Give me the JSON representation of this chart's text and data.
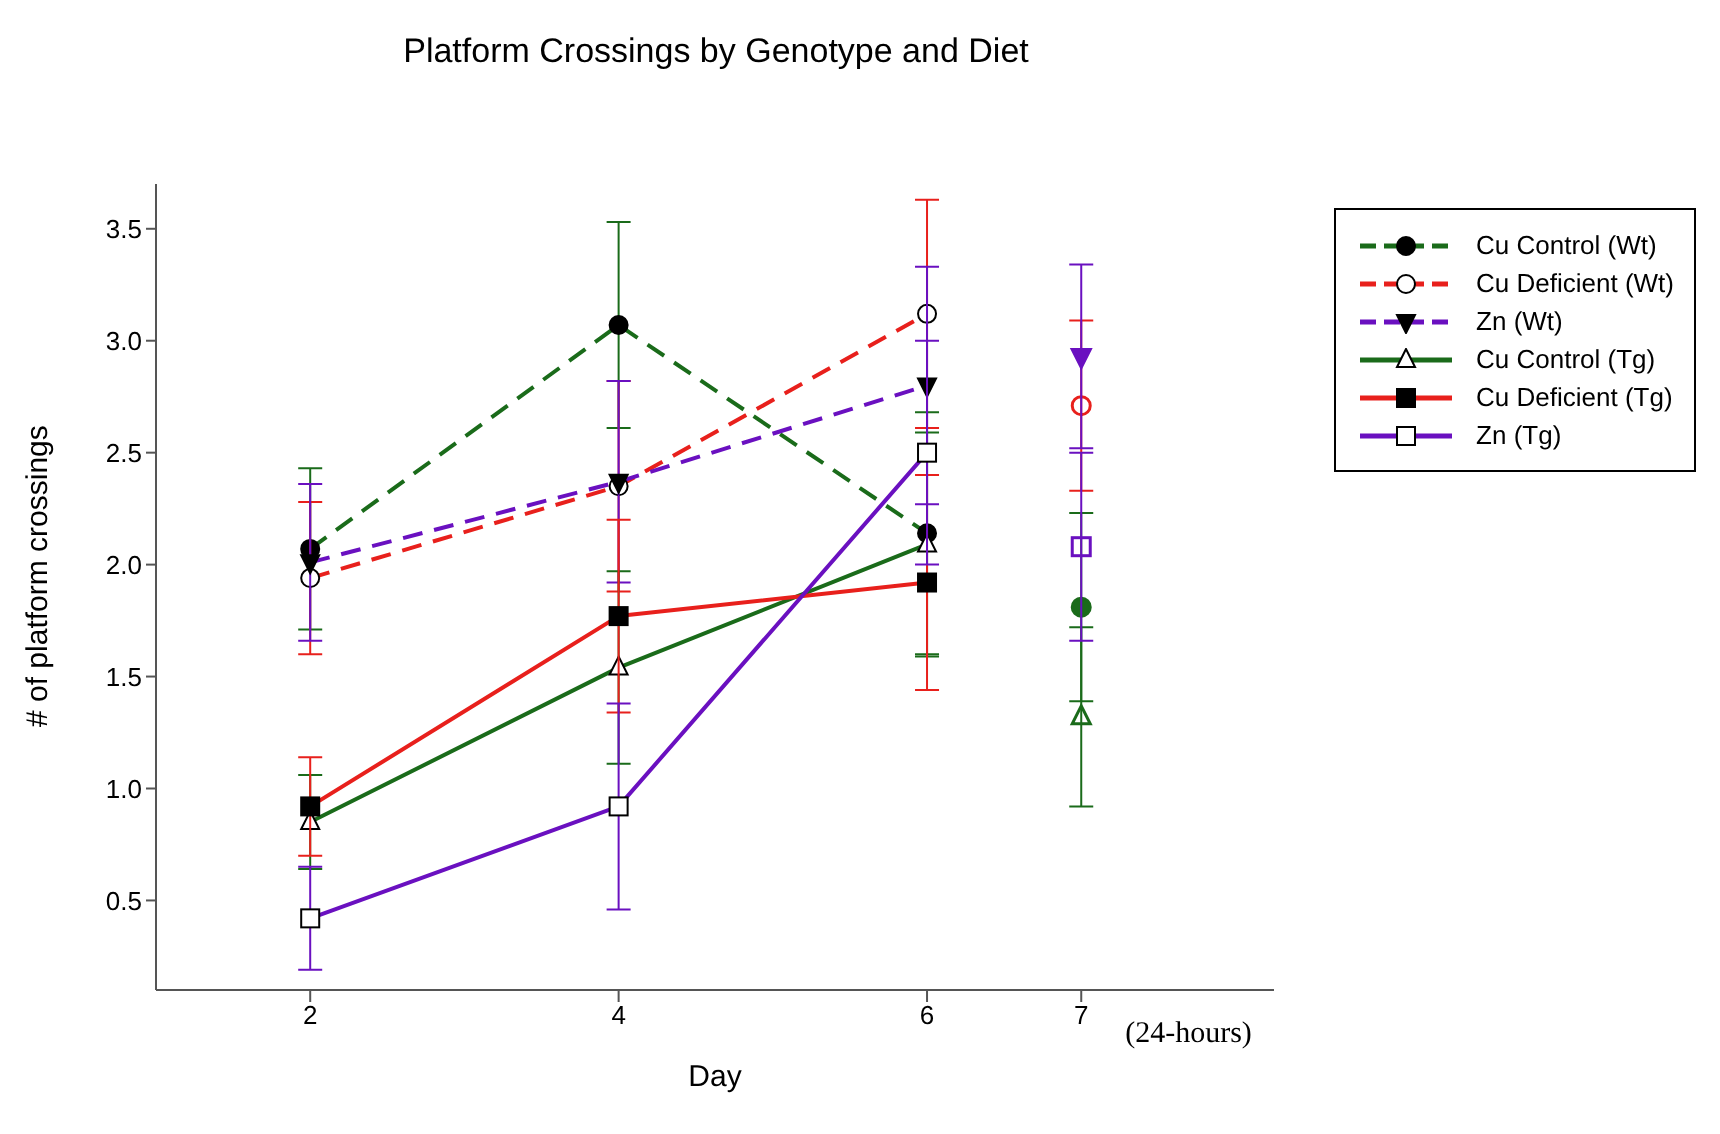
{
  "chart_data": {
    "type": "line",
    "title": "Platform Crossings  by Genotype and Diet",
    "xlabel": "Day",
    "ylabel": "# of platform crossings",
    "xlim": [
      1,
      8.25
    ],
    "xticks": [
      2,
      4,
      6,
      7
    ],
    "ylim": [
      0.1,
      3.7
    ],
    "yticks": [
      0.5,
      {
        "value": 1,
        "label": "1.0"
      },
      1.5,
      {
        "value": 2,
        "label": "2.0"
      },
      2.5,
      {
        "value": 3,
        "label": "3.0"
      },
      3.5
    ],
    "legend": "top right",
    "annotations": [
      "(24-hours)"
    ],
    "series": [
      {
        "name": "Cu Control (Wt)",
        "color": "#1a6b1a",
        "line_style": "dashed",
        "marker": "circle",
        "x": [
          2,
          4,
          6
        ],
        "values": [
          2.07,
          3.07,
          2.14
        ],
        "errors": [
          0.36,
          0.46,
          0.54
        ]
      },
      {
        "name": "Cu Deficient (Wt)",
        "color": "#e8201c",
        "line_style": "dashed",
        "marker": "circle_open",
        "x": [
          2,
          4,
          6
        ],
        "values": [
          1.94,
          2.35,
          3.12
        ],
        "errors": [
          0.34,
          0.47,
          0.51
        ]
      },
      {
        "name": "Zn (Wt)",
        "color": "#6a10c0",
        "line_style": "dashed",
        "marker": "triangle_down",
        "x": [
          2,
          4,
          6
        ],
        "values": [
          2.01,
          2.37,
          2.8
        ],
        "errors": [
          0.35,
          0.45,
          0.53
        ]
      },
      {
        "name": "Cu Control (Tg)",
        "color": "#1a6b1a",
        "line_style": "solid",
        "marker": "triangle_open",
        "x": [
          2,
          4,
          6
        ],
        "values": [
          0.85,
          1.54,
          2.09
        ],
        "errors": [
          0.21,
          0.43,
          0.5
        ]
      },
      {
        "name": "Cu Deficient (Tg)",
        "color": "#e8201c",
        "line_style": "solid",
        "marker": "square",
        "x": [
          2,
          4,
          6
        ],
        "values": [
          0.92,
          1.77,
          1.92
        ],
        "errors": [
          0.22,
          0.43,
          0.48
        ]
      },
      {
        "name": "Zn (Tg)",
        "color": "#6a10c0",
        "line_style": "solid",
        "marker": "square_open",
        "x": [
          2,
          4,
          6
        ],
        "values": [
          0.42,
          0.92,
          2.5
        ],
        "errors": [
          0.23,
          0.46,
          0.5
        ]
      },
      {
        "type": "scatter",
        "color": "#1a6b1a",
        "marker": "circle",
        "x": [
          7
        ],
        "values": [
          1.81
        ],
        "errors": [
          0.42
        ]
      },
      {
        "type": "scatter",
        "color": "#e8201c",
        "marker": "circle_open",
        "x": [
          7
        ],
        "values": [
          2.71
        ],
        "errors": [
          0.38
        ]
      },
      {
        "type": "scatter",
        "color": "#6a10c0",
        "marker": "triangle_down",
        "x": [
          7
        ],
        "values": [
          2.93
        ],
        "errors": [
          0.41
        ]
      },
      {
        "type": "scatter",
        "color": "#1a6b1a",
        "marker": "triangle_open",
        "x": [
          7
        ],
        "values": [
          1.32
        ],
        "errors": [
          0.4
        ]
      },
      {
        "type": "scatter",
        "color": "#6a10c0",
        "marker": "square_open",
        "x": [
          7
        ],
        "values": [
          2.08
        ],
        "errors": [
          0.42
        ]
      }
    ]
  }
}
